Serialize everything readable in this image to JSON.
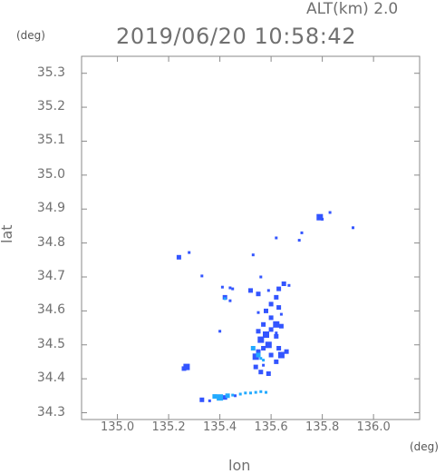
{
  "header": {
    "altitude_label": "ALT(km) 2.0",
    "timestamp": "2019/06/20 10:58:42"
  },
  "chart_data": {
    "type": "scatter",
    "title": "2019/06/20 10:58:42",
    "subtitle": "ALT(km) 2.0",
    "xlabel": "lon",
    "ylabel": "lat",
    "x_unit": "(deg)",
    "y_unit": "(deg)",
    "xlim": [
      134.86,
      136.18
    ],
    "ylim": [
      34.28,
      35.35
    ],
    "x_ticks": [
      135.0,
      135.2,
      135.4,
      135.6,
      135.8,
      136.0
    ],
    "x_tick_labels": [
      "135.0",
      "135.2",
      "135.4",
      "135.6",
      "135.8",
      "136.0"
    ],
    "y_ticks": [
      34.3,
      34.4,
      34.5,
      34.6,
      34.7,
      34.8,
      34.9,
      35.0,
      35.1,
      35.2,
      35.3
    ],
    "y_tick_labels": [
      "34.3",
      "34.4",
      "34.5",
      "34.6",
      "34.7",
      "34.8",
      "34.9",
      "35.0",
      "35.1",
      "35.2",
      "35.3"
    ],
    "grid": false,
    "colors": {
      "strong": "#3355ff",
      "weak": "#22aaff",
      "axis": "#8a8a8a"
    },
    "series": [
      {
        "points": [
          [
            135.24,
            34.758,
            2
          ],
          [
            135.28,
            34.772,
            1
          ],
          [
            135.33,
            34.703,
            1
          ],
          [
            135.41,
            34.67,
            1
          ],
          [
            135.44,
            34.668,
            1
          ],
          [
            135.45,
            34.665,
            1
          ],
          [
            135.42,
            34.64,
            2
          ],
          [
            135.44,
            34.63,
            1
          ],
          [
            135.4,
            34.54,
            1
          ],
          [
            135.53,
            34.765,
            1
          ],
          [
            135.62,
            34.815,
            1
          ],
          [
            135.71,
            34.808,
            1
          ],
          [
            135.72,
            34.83,
            1
          ],
          [
            135.83,
            34.89,
            1
          ],
          [
            135.92,
            34.845,
            1
          ],
          [
            135.79,
            34.876,
            3
          ],
          [
            135.8,
            34.87,
            1
          ],
          [
            135.52,
            34.66,
            2
          ],
          [
            135.55,
            34.65,
            2
          ],
          [
            135.56,
            34.7,
            1
          ],
          [
            135.59,
            34.66,
            1
          ],
          [
            135.63,
            34.665,
            2
          ],
          [
            135.65,
            34.68,
            2
          ],
          [
            135.67,
            34.675,
            1
          ],
          [
            135.62,
            34.64,
            2
          ],
          [
            135.6,
            34.62,
            2
          ],
          [
            135.58,
            34.6,
            2
          ],
          [
            135.63,
            34.61,
            2
          ],
          [
            135.64,
            34.59,
            1
          ],
          [
            135.6,
            34.58,
            2
          ],
          [
            135.62,
            34.56,
            3
          ],
          [
            135.57,
            34.56,
            2
          ],
          [
            135.55,
            34.54,
            2
          ],
          [
            135.58,
            34.53,
            3
          ],
          [
            135.56,
            34.515,
            3
          ],
          [
            135.59,
            34.5,
            3
          ],
          [
            135.57,
            34.49,
            2
          ],
          [
            135.6,
            34.47,
            2
          ],
          [
            135.55,
            34.48,
            2
          ],
          [
            135.54,
            34.465,
            3
          ],
          [
            135.57,
            34.44,
            1
          ],
          [
            135.56,
            34.42,
            2
          ],
          [
            135.59,
            34.415,
            2
          ],
          [
            135.54,
            34.435,
            2
          ],
          [
            135.63,
            34.49,
            2
          ],
          [
            135.64,
            34.47,
            3
          ],
          [
            135.66,
            34.48,
            2
          ],
          [
            135.62,
            34.45,
            2
          ],
          [
            135.64,
            34.555,
            2
          ],
          [
            135.62,
            34.535,
            1
          ],
          [
            135.6,
            34.545,
            2
          ],
          [
            135.55,
            34.595,
            1
          ],
          [
            135.62,
            34.525,
            2
          ],
          [
            135.27,
            34.435,
            3
          ],
          [
            135.26,
            34.43,
            2
          ],
          [
            135.33,
            34.338,
            2
          ],
          [
            135.36,
            34.335,
            1
          ],
          [
            135.42,
            34.345,
            2
          ],
          [
            135.46,
            34.35,
            1
          ]
        ]
      },
      {
        "points": [
          [
            135.53,
            34.49,
            2
          ],
          [
            135.55,
            34.47,
            2
          ],
          [
            135.56,
            34.46,
            1
          ],
          [
            135.57,
            34.455,
            1
          ],
          [
            135.38,
            34.348,
            2
          ],
          [
            135.4,
            34.345,
            3
          ],
          [
            135.43,
            34.35,
            2
          ],
          [
            135.45,
            34.352,
            1
          ],
          [
            135.48,
            34.355,
            1
          ],
          [
            135.5,
            34.358,
            1
          ],
          [
            135.52,
            34.358,
            1
          ],
          [
            135.54,
            34.36,
            1
          ],
          [
            135.56,
            34.362,
            1
          ],
          [
            135.58,
            34.36,
            1
          ],
          [
            135.42,
            34.636,
            1
          ]
        ]
      }
    ]
  }
}
